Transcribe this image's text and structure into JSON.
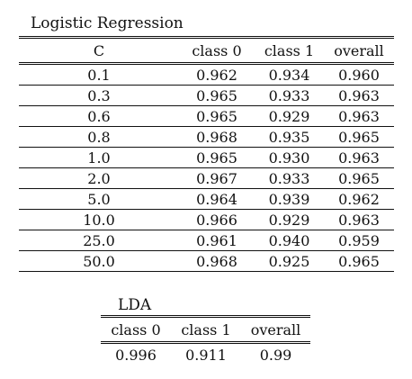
{
  "logistic_regression": {
    "caption": "Logistic Regression",
    "headers": [
      "C",
      "class 0",
      "class 1",
      "overall"
    ],
    "rows": [
      [
        "0.1",
        "0.962",
        "0.934",
        "0.960"
      ],
      [
        "0.3",
        "0.965",
        "0.933",
        "0.963"
      ],
      [
        "0.6",
        "0.965",
        "0.929",
        "0.963"
      ],
      [
        "0.8",
        "0.968",
        "0.935",
        "0.965"
      ],
      [
        "1.0",
        "0.965",
        "0.930",
        "0.963"
      ],
      [
        "2.0",
        "0.967",
        "0.933",
        "0.965"
      ],
      [
        "5.0",
        "0.964",
        "0.939",
        "0.962"
      ],
      [
        "10.0",
        "0.966",
        "0.929",
        "0.963"
      ],
      [
        "25.0",
        "0.961",
        "0.940",
        "0.959"
      ],
      [
        "50.0",
        "0.968",
        "0.925",
        "0.965"
      ]
    ]
  },
  "lda": {
    "caption": "LDA",
    "headers": [
      "class 0",
      "class 1",
      "overall"
    ],
    "rows": [
      [
        "0.996",
        "0.911",
        "0.99"
      ]
    ]
  }
}
